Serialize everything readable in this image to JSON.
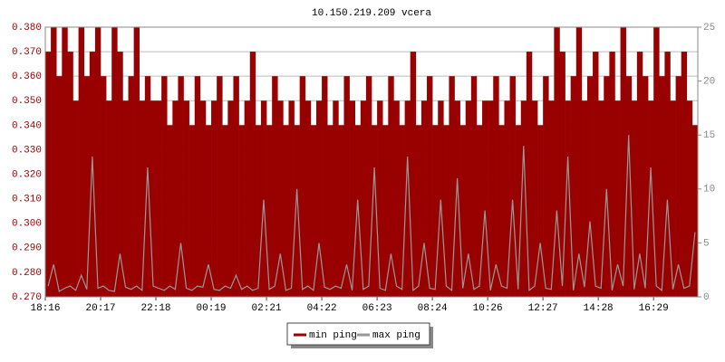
{
  "chart_data": {
    "type": "bar",
    "title": "10.150.219.209 vcera",
    "categories": [
      "18:16",
      null,
      null,
      null,
      null,
      null,
      null,
      null,
      null,
      null,
      "20:17",
      null,
      null,
      null,
      null,
      null,
      null,
      null,
      null,
      null,
      "22:18",
      null,
      null,
      null,
      null,
      null,
      null,
      null,
      null,
      null,
      "00:19",
      null,
      null,
      null,
      null,
      null,
      null,
      null,
      null,
      null,
      "02:21",
      null,
      null,
      null,
      null,
      null,
      null,
      null,
      null,
      null,
      "04:22",
      null,
      null,
      null,
      null,
      null,
      null,
      null,
      null,
      null,
      "06:23",
      null,
      null,
      null,
      null,
      null,
      null,
      null,
      null,
      null,
      "08:24",
      null,
      null,
      null,
      null,
      null,
      null,
      null,
      null,
      null,
      "10:26",
      null,
      null,
      null,
      null,
      null,
      null,
      null,
      null,
      null,
      "12:27",
      null,
      null,
      null,
      null,
      null,
      null,
      null,
      null,
      null,
      "14:28",
      null,
      null,
      null,
      null,
      null,
      null,
      null,
      null,
      null,
      "16:29",
      null,
      null,
      null,
      null,
      null,
      null,
      null
    ],
    "series": [
      {
        "name": "min ping",
        "type": "bar",
        "color": "#990000",
        "values": [
          0.37,
          0.38,
          0.36,
          0.38,
          0.37,
          0.35,
          0.38,
          0.36,
          0.37,
          0.38,
          0.36,
          0.35,
          0.38,
          0.37,
          0.35,
          0.36,
          0.38,
          0.35,
          0.36,
          0.35,
          0.35,
          0.36,
          0.34,
          0.35,
          0.36,
          0.35,
          0.34,
          0.36,
          0.35,
          0.34,
          0.35,
          0.36,
          0.34,
          0.35,
          0.36,
          0.34,
          0.35,
          0.37,
          0.34,
          0.35,
          0.34,
          0.36,
          0.35,
          0.34,
          0.35,
          0.34,
          0.36,
          0.35,
          0.34,
          0.35,
          0.36,
          0.34,
          0.35,
          0.34,
          0.36,
          0.35,
          0.34,
          0.35,
          0.36,
          0.34,
          0.35,
          0.34,
          0.36,
          0.35,
          0.34,
          0.35,
          0.37,
          0.34,
          0.35,
          0.36,
          0.34,
          0.35,
          0.34,
          0.36,
          0.35,
          0.34,
          0.35,
          0.36,
          0.34,
          0.35,
          0.35,
          0.36,
          0.34,
          0.35,
          0.36,
          0.34,
          0.35,
          0.37,
          0.35,
          0.34,
          0.36,
          0.35,
          0.38,
          0.37,
          0.35,
          0.36,
          0.38,
          0.35,
          0.36,
          0.37,
          0.35,
          0.36,
          0.37,
          0.35,
          0.38,
          0.36,
          0.35,
          0.37,
          0.36,
          0.35,
          0.38,
          0.36,
          0.37,
          0.35,
          0.36,
          0.37,
          0.35,
          0.34
        ]
      },
      {
        "name": "max ping",
        "type": "line",
        "axis": "y2",
        "color": "#999999",
        "values": [
          1,
          3,
          0.5,
          0.8,
          1,
          0.6,
          2,
          0.7,
          13,
          0.8,
          1,
          0.6,
          0.5,
          4,
          0.9,
          0.7,
          1,
          0.6,
          12,
          1,
          0.8,
          0.6,
          1,
          0.7,
          5,
          0.8,
          0.6,
          1,
          0.9,
          3,
          0.7,
          0.6,
          1,
          0.8,
          2,
          0.7,
          1,
          0.6,
          0.8,
          9,
          0.7,
          1,
          4,
          0.6,
          0.8,
          10,
          0.7,
          1,
          0.6,
          5,
          0.9,
          0.7,
          1,
          0.8,
          3,
          0.6,
          9,
          0.7,
          1,
          12,
          0.8,
          0.6,
          4,
          1,
          0.7,
          13,
          0.6,
          1,
          5,
          0.8,
          0.7,
          9,
          1,
          0.6,
          11,
          0.8,
          4,
          0.7,
          1,
          8,
          0.6,
          3,
          1,
          0.8,
          9,
          0.7,
          14,
          0.6,
          1,
          5,
          0.8,
          0.7,
          8,
          1,
          13,
          0.6,
          4,
          0.9,
          7,
          1,
          0.8,
          10,
          0.6,
          3,
          1,
          15,
          0.7,
          4,
          0.8,
          12,
          1,
          0.6,
          9,
          0.7,
          3,
          0.8,
          1,
          6
        ]
      }
    ],
    "ylim": [
      0.27,
      0.38
    ],
    "yticks": [
      {
        "value": 0.27,
        "label": "0.270"
      },
      {
        "value": 0.28,
        "label": "0.280"
      },
      {
        "value": 0.29,
        "label": "0.290"
      },
      {
        "value": 0.3,
        "label": "0.300"
      },
      {
        "value": 0.31,
        "label": "0.310"
      },
      {
        "value": 0.32,
        "label": "0.320"
      },
      {
        "value": 0.33,
        "label": "0.330"
      },
      {
        "value": 0.34,
        "label": "0.340"
      },
      {
        "value": 0.35,
        "label": "0.350"
      },
      {
        "value": 0.36,
        "label": "0.360"
      },
      {
        "value": 0.37,
        "label": "0.370"
      },
      {
        "value": 0.38,
        "label": "0.380"
      }
    ],
    "y2lim": [
      0,
      25
    ],
    "y2ticks": [
      0,
      5,
      10,
      15,
      20,
      25
    ],
    "grid": true
  }
}
